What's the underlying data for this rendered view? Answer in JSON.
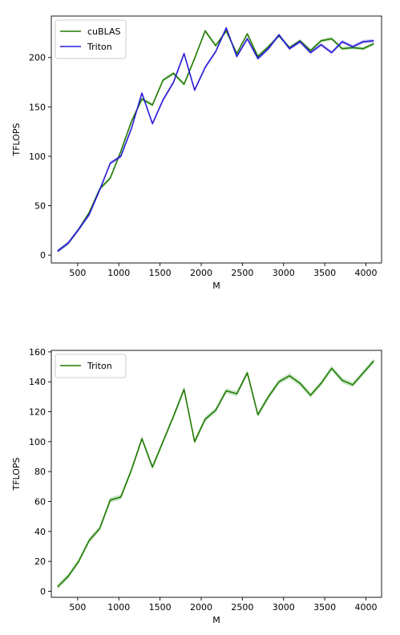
{
  "chart_data": [
    {
      "type": "line",
      "xlabel": "M",
      "ylabel": "TFLOPS",
      "xlim": [
        180,
        4190
      ],
      "ylim": [
        -8,
        242
      ],
      "xticks": [
        500,
        1000,
        1500,
        2000,
        2500,
        3000,
        3500,
        4000
      ],
      "yticks": [
        0,
        50,
        100,
        150,
        200
      ],
      "grid": false,
      "legend": "top-left",
      "x": [
        256,
        384,
        512,
        640,
        768,
        896,
        1024,
        1152,
        1280,
        1408,
        1536,
        1664,
        1792,
        1920,
        2048,
        2176,
        2304,
        2432,
        2560,
        2688,
        2816,
        2944,
        3072,
        3200,
        3328,
        3456,
        3584,
        3712,
        3840,
        3968,
        4096
      ],
      "series": [
        {
          "name": "cuBLAS",
          "color": "#2ca02c",
          "line_color": "#217a00",
          "values": [
            4,
            12,
            26,
            43,
            67,
            78,
            105,
            135,
            158,
            152,
            177,
            184,
            173,
            199,
            227,
            212,
            227,
            204,
            224,
            201,
            211,
            222,
            210,
            217,
            207,
            217,
            219,
            209,
            210,
            209,
            214
          ]
        },
        {
          "name": "Triton",
          "color": "#2a1bd8",
          "line_color": "#2a1bd8",
          "values": [
            4,
            12,
            26,
            41,
            66,
            93,
            100,
            128,
            164,
            133,
            157,
            175,
            204,
            167,
            190,
            206,
            230,
            201,
            219,
            199,
            209,
            223,
            209,
            216,
            205,
            213,
            205,
            216,
            211,
            216,
            217
          ]
        }
      ]
    },
    {
      "type": "line",
      "xlabel": "M",
      "ylabel": "TFLOPS",
      "xlim": [
        180,
        4190
      ],
      "ylim": [
        -4,
        161
      ],
      "xticks": [
        500,
        1000,
        1500,
        2000,
        2500,
        3000,
        3500,
        4000
      ],
      "yticks": [
        0,
        20,
        40,
        60,
        80,
        100,
        120,
        140,
        160
      ],
      "grid": false,
      "legend": "top-left",
      "x": [
        256,
        384,
        512,
        640,
        768,
        896,
        1024,
        1152,
        1280,
        1408,
        1536,
        1664,
        1792,
        1920,
        2048,
        2176,
        2304,
        2432,
        2560,
        2688,
        2816,
        2944,
        3072,
        3200,
        3328,
        3456,
        3584,
        3712,
        3840,
        3968,
        4096
      ],
      "series": [
        {
          "name": "Triton",
          "color": "#2ca02c",
          "line_color": "#217a00",
          "values": [
            3,
            10,
            20,
            34,
            42,
            61,
            63,
            81,
            102,
            83,
            100,
            117,
            135,
            100,
            115,
            121,
            134,
            132,
            146,
            118,
            130,
            140,
            144,
            139,
            131,
            139,
            149,
            141,
            138,
            146,
            154
          ]
        }
      ]
    }
  ]
}
